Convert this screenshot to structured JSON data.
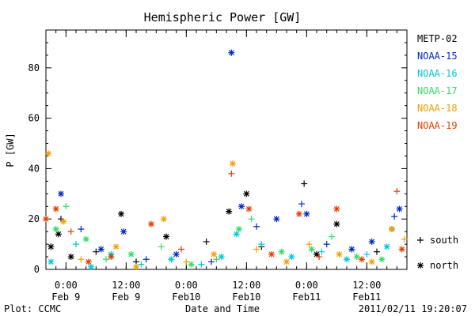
{
  "footer": {
    "plot_credit": "Plot: CCMC",
    "timestamp": "2011/02/11 19:20:07"
  },
  "chart_data": {
    "type": "scatter",
    "title": "Hemispheric Power [GW]",
    "xlabel": "Date and Time",
    "ylabel": "P [GW]",
    "x_range": [
      "2011-02-08T20:00",
      "2011-02-11T20:00"
    ],
    "ylim": [
      0,
      95
    ],
    "y_ticks": [
      0,
      20,
      40,
      60,
      80
    ],
    "x_ticks": [
      {
        "x": "2011-02-09T00:00",
        "line1": "0:00",
        "line2": "Feb 9"
      },
      {
        "x": "2011-02-09T12:00",
        "line1": "12:00",
        "line2": "Feb 9"
      },
      {
        "x": "2011-02-10T00:00",
        "line1": "0:00",
        "line2": "Feb10"
      },
      {
        "x": "2011-02-10T12:00",
        "line1": "12:00",
        "line2": "Feb10"
      },
      {
        "x": "2011-02-11T00:00",
        "line1": "0:00",
        "line2": "Feb11"
      },
      {
        "x": "2011-02-11T12:00",
        "line1": "12:00",
        "line2": "Feb11"
      }
    ],
    "marker_legend": [
      {
        "symbol": "+",
        "label": "south"
      },
      {
        "symbol": "*",
        "label": "north"
      }
    ],
    "series": [
      {
        "name": "METP-02",
        "color": "#000000",
        "points": [
          {
            "x": "2011-02-08T21:00",
            "y": 9,
            "hemi": "north"
          },
          {
            "x": "2011-02-08T22:30",
            "y": 14,
            "hemi": "north"
          },
          {
            "x": "2011-02-08T23:00",
            "y": 20,
            "hemi": "south"
          },
          {
            "x": "2011-02-09T01:00",
            "y": 5,
            "hemi": "north"
          },
          {
            "x": "2011-02-09T06:00",
            "y": 7,
            "hemi": "south"
          },
          {
            "x": "2011-02-09T11:00",
            "y": 22,
            "hemi": "north"
          },
          {
            "x": "2011-02-09T14:00",
            "y": 3,
            "hemi": "south"
          },
          {
            "x": "2011-02-09T20:00",
            "y": 13,
            "hemi": "north"
          },
          {
            "x": "2011-02-10T04:00",
            "y": 11,
            "hemi": "south"
          },
          {
            "x": "2011-02-10T08:30",
            "y": 23,
            "hemi": "north"
          },
          {
            "x": "2011-02-10T12:00",
            "y": 30,
            "hemi": "north"
          },
          {
            "x": "2011-02-10T15:00",
            "y": 9,
            "hemi": "south"
          },
          {
            "x": "2011-02-10T23:30",
            "y": 34,
            "hemi": "south"
          },
          {
            "x": "2011-02-11T02:00",
            "y": 6,
            "hemi": "north"
          },
          {
            "x": "2011-02-11T06:00",
            "y": 18,
            "hemi": "north"
          },
          {
            "x": "2011-02-11T14:00",
            "y": 7,
            "hemi": "south"
          },
          {
            "x": "2011-02-11T17:00",
            "y": 16,
            "hemi": "north"
          }
        ]
      },
      {
        "name": "NOAA-15",
        "color": "#0028c8",
        "points": [
          {
            "x": "2011-02-08T23:00",
            "y": 30,
            "hemi": "north"
          },
          {
            "x": "2011-02-09T03:00",
            "y": 16,
            "hemi": "south"
          },
          {
            "x": "2011-02-09T07:00",
            "y": 8,
            "hemi": "north"
          },
          {
            "x": "2011-02-09T11:30",
            "y": 15,
            "hemi": "north"
          },
          {
            "x": "2011-02-09T16:00",
            "y": 4,
            "hemi": "south"
          },
          {
            "x": "2011-02-09T22:00",
            "y": 6,
            "hemi": "north"
          },
          {
            "x": "2011-02-10T05:00",
            "y": 3,
            "hemi": "south"
          },
          {
            "x": "2011-02-10T09:00",
            "y": 86,
            "hemi": "north"
          },
          {
            "x": "2011-02-10T11:00",
            "y": 25,
            "hemi": "north"
          },
          {
            "x": "2011-02-10T14:00",
            "y": 17,
            "hemi": "south"
          },
          {
            "x": "2011-02-10T18:00",
            "y": 20,
            "hemi": "north"
          },
          {
            "x": "2011-02-10T23:00",
            "y": 26,
            "hemi": "south"
          },
          {
            "x": "2011-02-11T00:00",
            "y": 22,
            "hemi": "north"
          },
          {
            "x": "2011-02-11T04:00",
            "y": 10,
            "hemi": "south"
          },
          {
            "x": "2011-02-11T09:00",
            "y": 8,
            "hemi": "north"
          },
          {
            "x": "2011-02-11T13:00",
            "y": 11,
            "hemi": "north"
          },
          {
            "x": "2011-02-11T17:30",
            "y": 21,
            "hemi": "south"
          },
          {
            "x": "2011-02-11T18:30",
            "y": 24,
            "hemi": "north"
          }
        ]
      },
      {
        "name": "NOAA-16",
        "color": "#00c8dc",
        "points": [
          {
            "x": "2011-02-08T21:00",
            "y": 3,
            "hemi": "north"
          },
          {
            "x": "2011-02-09T02:00",
            "y": 10,
            "hemi": "south"
          },
          {
            "x": "2011-02-09T05:00",
            "y": 1,
            "hemi": "north"
          },
          {
            "x": "2011-02-09T09:00",
            "y": 6,
            "hemi": "north"
          },
          {
            "x": "2011-02-09T15:00",
            "y": 2,
            "hemi": "south"
          },
          {
            "x": "2011-02-09T21:00",
            "y": 4,
            "hemi": "north"
          },
          {
            "x": "2011-02-10T03:00",
            "y": 2,
            "hemi": "south"
          },
          {
            "x": "2011-02-10T07:00",
            "y": 5,
            "hemi": "north"
          },
          {
            "x": "2011-02-10T10:00",
            "y": 14,
            "hemi": "north"
          },
          {
            "x": "2011-02-10T15:00",
            "y": 10,
            "hemi": "south"
          },
          {
            "x": "2011-02-10T21:00",
            "y": 5,
            "hemi": "north"
          },
          {
            "x": "2011-02-11T03:00",
            "y": 7,
            "hemi": "south"
          },
          {
            "x": "2011-02-11T08:00",
            "y": 4,
            "hemi": "north"
          },
          {
            "x": "2011-02-11T12:00",
            "y": 6,
            "hemi": "south"
          },
          {
            "x": "2011-02-11T16:00",
            "y": 9,
            "hemi": "north"
          }
        ]
      },
      {
        "name": "NOAA-17",
        "color": "#32dc64",
        "points": [
          {
            "x": "2011-02-08T22:00",
            "y": 16,
            "hemi": "north"
          },
          {
            "x": "2011-02-09T00:00",
            "y": 25,
            "hemi": "south"
          },
          {
            "x": "2011-02-09T04:00",
            "y": 12,
            "hemi": "north"
          },
          {
            "x": "2011-02-09T08:00",
            "y": 4,
            "hemi": "south"
          },
          {
            "x": "2011-02-09T13:00",
            "y": 6,
            "hemi": "north"
          },
          {
            "x": "2011-02-09T19:00",
            "y": 9,
            "hemi": "south"
          },
          {
            "x": "2011-02-10T01:00",
            "y": 2,
            "hemi": "north"
          },
          {
            "x": "2011-02-10T06:00",
            "y": 4,
            "hemi": "south"
          },
          {
            "x": "2011-02-10T10:30",
            "y": 16,
            "hemi": "north"
          },
          {
            "x": "2011-02-10T13:00",
            "y": 20,
            "hemi": "south"
          },
          {
            "x": "2011-02-10T19:00",
            "y": 7,
            "hemi": "north"
          },
          {
            "x": "2011-02-11T01:00",
            "y": 8,
            "hemi": "north"
          },
          {
            "x": "2011-02-11T05:00",
            "y": 13,
            "hemi": "south"
          },
          {
            "x": "2011-02-11T10:00",
            "y": 5,
            "hemi": "north"
          },
          {
            "x": "2011-02-11T15:00",
            "y": 4,
            "hemi": "north"
          }
        ]
      },
      {
        "name": "NOAA-18",
        "color": "#f0a000",
        "points": [
          {
            "x": "2011-02-08T20:30",
            "y": 46,
            "hemi": "north"
          },
          {
            "x": "2011-02-08T23:30",
            "y": 19,
            "hemi": "north"
          },
          {
            "x": "2011-02-09T03:00",
            "y": 4,
            "hemi": "south"
          },
          {
            "x": "2011-02-09T10:00",
            "y": 9,
            "hemi": "north"
          },
          {
            "x": "2011-02-09T14:00",
            "y": 1,
            "hemi": "north"
          },
          {
            "x": "2011-02-09T19:30",
            "y": 20,
            "hemi": "north"
          },
          {
            "x": "2011-02-10T00:00",
            "y": 3,
            "hemi": "south"
          },
          {
            "x": "2011-02-10T05:30",
            "y": 6,
            "hemi": "north"
          },
          {
            "x": "2011-02-10T09:15",
            "y": 42,
            "hemi": "north"
          },
          {
            "x": "2011-02-10T14:00",
            "y": 8,
            "hemi": "south"
          },
          {
            "x": "2011-02-10T20:00",
            "y": 3,
            "hemi": "north"
          },
          {
            "x": "2011-02-11T00:30",
            "y": 10,
            "hemi": "south"
          },
          {
            "x": "2011-02-11T06:30",
            "y": 6,
            "hemi": "north"
          },
          {
            "x": "2011-02-11T13:00",
            "y": 3,
            "hemi": "north"
          },
          {
            "x": "2011-02-11T17:00",
            "y": 16,
            "hemi": "north"
          },
          {
            "x": "2011-02-11T19:30",
            "y": 12,
            "hemi": "south"
          }
        ]
      },
      {
        "name": "NOAA-19",
        "color": "#e63c00",
        "points": [
          {
            "x": "2011-02-08T20:00",
            "y": 20,
            "hemi": "north"
          },
          {
            "x": "2011-02-08T22:00",
            "y": 24,
            "hemi": "north"
          },
          {
            "x": "2011-02-09T01:00",
            "y": 15,
            "hemi": "south"
          },
          {
            "x": "2011-02-09T04:30",
            "y": 3,
            "hemi": "north"
          },
          {
            "x": "2011-02-09T09:00",
            "y": 5,
            "hemi": "north"
          },
          {
            "x": "2011-02-09T17:00",
            "y": 18,
            "hemi": "north"
          },
          {
            "x": "2011-02-09T23:00",
            "y": 8,
            "hemi": "south"
          },
          {
            "x": "2011-02-10T09:00",
            "y": 38,
            "hemi": "south"
          },
          {
            "x": "2011-02-10T12:30",
            "y": 24,
            "hemi": "north"
          },
          {
            "x": "2011-02-10T17:00",
            "y": 6,
            "hemi": "north"
          },
          {
            "x": "2011-02-10T22:30",
            "y": 22,
            "hemi": "north"
          },
          {
            "x": "2011-02-11T02:30",
            "y": 5,
            "hemi": "south"
          },
          {
            "x": "2011-02-11T06:00",
            "y": 24,
            "hemi": "north"
          },
          {
            "x": "2011-02-11T11:00",
            "y": 4,
            "hemi": "north"
          },
          {
            "x": "2011-02-11T18:00",
            "y": 31,
            "hemi": "south"
          },
          {
            "x": "2011-02-11T19:00",
            "y": 8,
            "hemi": "north"
          }
        ]
      }
    ]
  }
}
